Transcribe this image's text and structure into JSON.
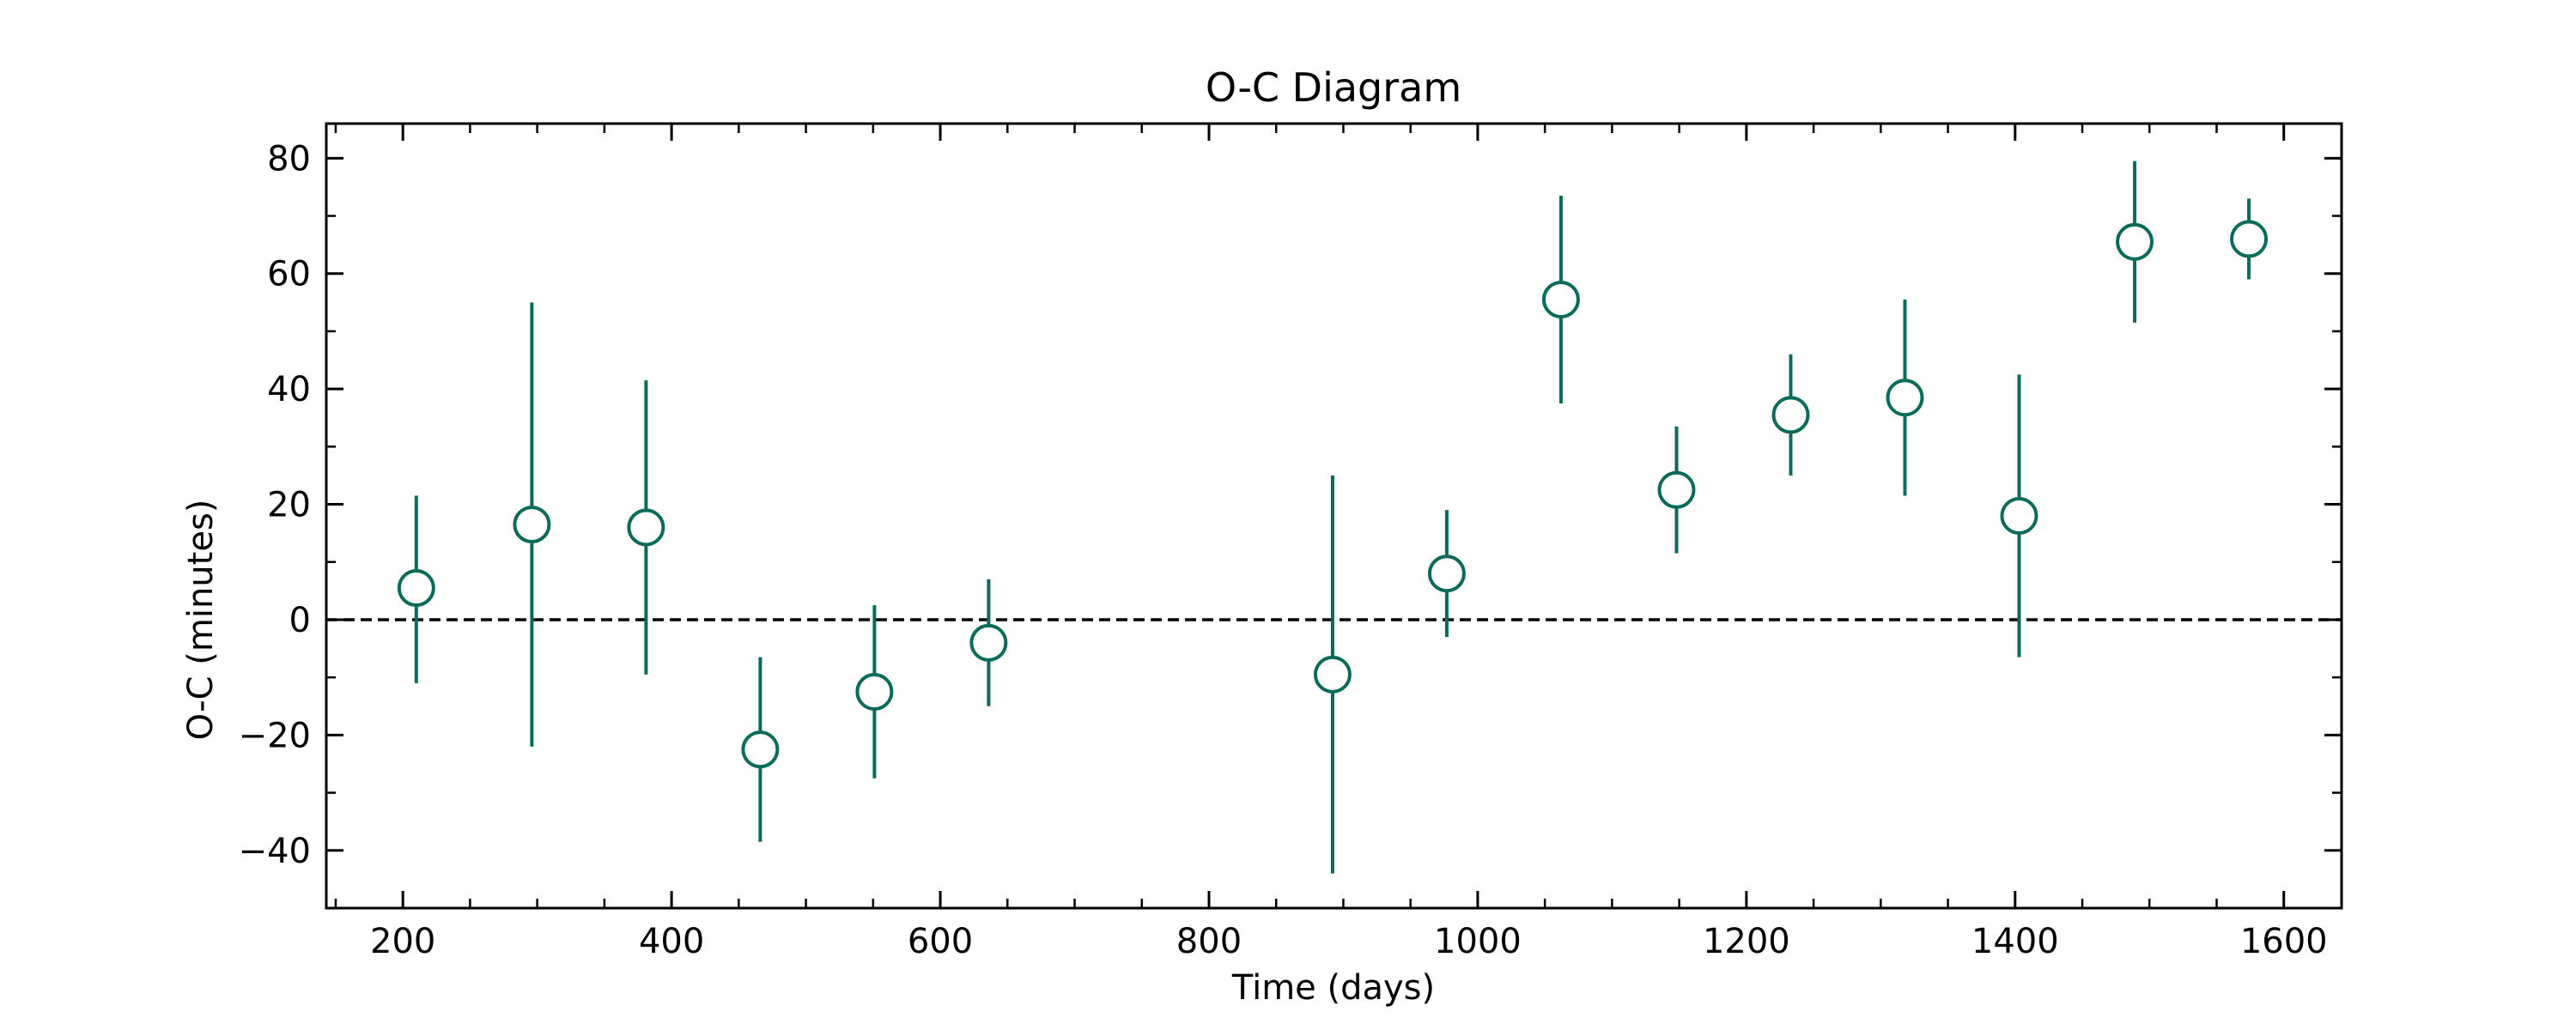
{
  "chart_data": {
    "type": "scatter",
    "title": "O-C Diagram",
    "xlabel": "Time (days)",
    "ylabel": "O-C (minutes)",
    "xlim": [
      143,
      1643
    ],
    "ylim": [
      -50,
      86
    ],
    "x_ticks": [
      200,
      400,
      600,
      800,
      1000,
      1200,
      1400,
      1600
    ],
    "y_ticks": [
      -40,
      -20,
      0,
      20,
      40,
      60,
      80
    ],
    "x_tick_labels": [
      "200",
      "400",
      "600",
      "800",
      "1000",
      "1200",
      "1400",
      "1600"
    ],
    "y_tick_labels": [
      "−40",
      "−20",
      "0",
      "20",
      "40",
      "60",
      "80"
    ],
    "x_minor_step": 50,
    "y_minor_step": 10,
    "reference_line": {
      "y": 0,
      "style": "dashed",
      "color": "#000000"
    },
    "grid": false,
    "marker_color": "#0b6b5a",
    "points": [
      {
        "x": 210,
        "y": 5.5,
        "err_low": 16.5,
        "err_high": 16.0
      },
      {
        "x": 296,
        "y": 16.5,
        "err_low": 38.5,
        "err_high": 38.5
      },
      {
        "x": 381,
        "y": 16.0,
        "err_low": 25.5,
        "err_high": 25.5
      },
      {
        "x": 466,
        "y": -22.5,
        "err_low": 16.0,
        "err_high": 16.0
      },
      {
        "x": 551,
        "y": -12.5,
        "err_low": 15.0,
        "err_high": 15.0
      },
      {
        "x": 636,
        "y": -4.0,
        "err_low": 11.0,
        "err_high": 11.0
      },
      {
        "x": 892,
        "y": -9.5,
        "err_low": 34.5,
        "err_high": 34.5
      },
      {
        "x": 977,
        "y": 8.0,
        "err_low": 11.0,
        "err_high": 11.0
      },
      {
        "x": 1062,
        "y": 55.5,
        "err_low": 18.0,
        "err_high": 18.0
      },
      {
        "x": 1148,
        "y": 22.5,
        "err_low": 11.0,
        "err_high": 11.0
      },
      {
        "x": 1233,
        "y": 35.5,
        "err_low": 10.5,
        "err_high": 10.5
      },
      {
        "x": 1318,
        "y": 38.5,
        "err_low": 17.0,
        "err_high": 17.0
      },
      {
        "x": 1403,
        "y": 18.0,
        "err_low": 24.5,
        "err_high": 24.5
      },
      {
        "x": 1489,
        "y": 65.5,
        "err_low": 14.0,
        "err_high": 14.0
      },
      {
        "x": 1574,
        "y": 66.0,
        "err_low": 7.0,
        "err_high": 7.0
      }
    ]
  }
}
